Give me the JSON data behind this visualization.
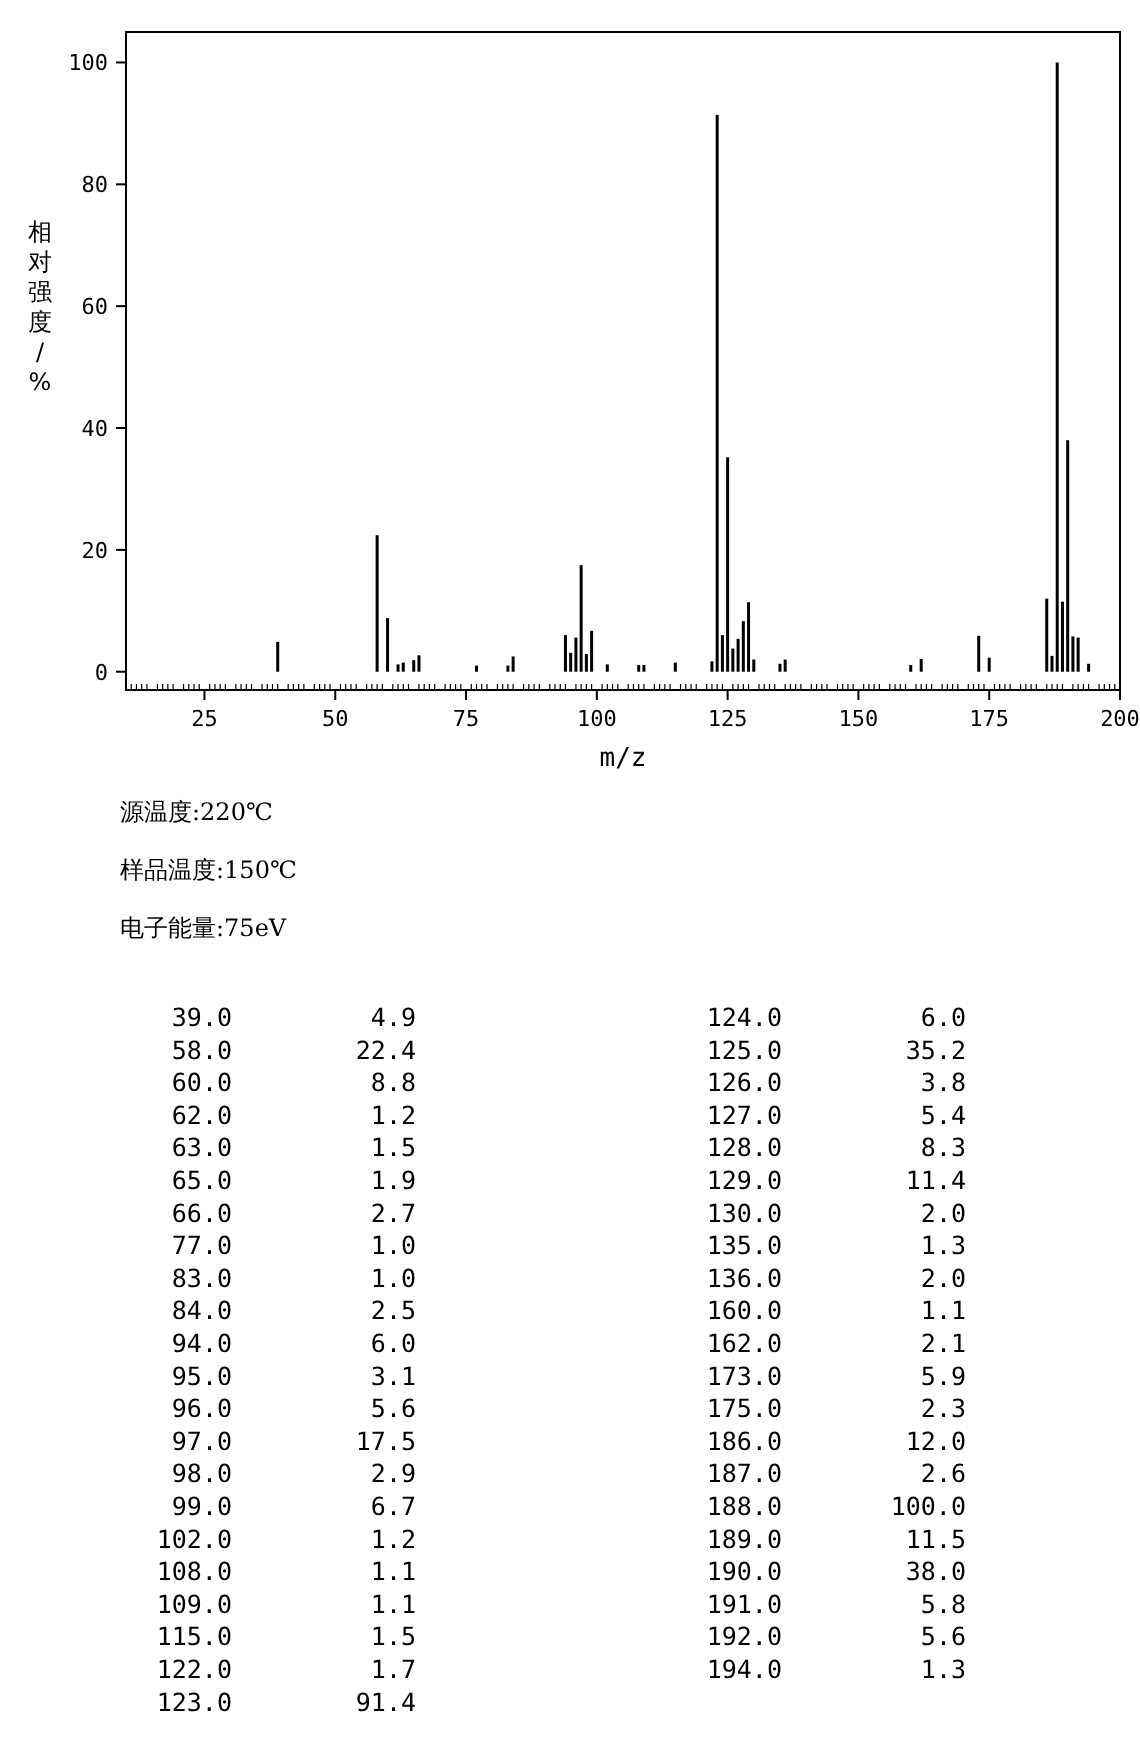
{
  "chart_data": {
    "type": "bar",
    "xlabel": "m/z",
    "ylabel": "相对强度/%",
    "x": [
      39,
      58,
      60,
      62,
      63,
      65,
      66,
      77,
      83,
      84,
      94,
      95,
      96,
      97,
      98,
      99,
      102,
      108,
      109,
      115,
      122,
      123,
      124,
      125,
      126,
      127,
      128,
      129,
      130,
      135,
      136,
      160,
      162,
      173,
      175,
      186,
      187,
      188,
      189,
      190,
      191,
      192,
      194
    ],
    "values": [
      4.9,
      22.4,
      8.8,
      1.2,
      1.5,
      1.9,
      2.7,
      1.0,
      1.0,
      2.5,
      6.0,
      3.1,
      5.6,
      17.5,
      2.9,
      6.7,
      1.2,
      1.1,
      1.1,
      1.5,
      1.7,
      91.4,
      6.0,
      35.2,
      3.8,
      5.4,
      8.3,
      11.4,
      2.0,
      1.3,
      2.0,
      1.1,
      2.1,
      5.9,
      2.3,
      12.0,
      2.6,
      100.0,
      11.5,
      38.0,
      5.8,
      5.6,
      1.3
    ],
    "color": "#000000",
    "xlim": [
      10,
      200
    ],
    "ylim": [
      -3,
      105
    ],
    "xticks": [
      25,
      50,
      75,
      100,
      125,
      150,
      175,
      200
    ],
    "yticks": [
      0,
      20,
      40,
      60,
      80,
      100
    ],
    "annotations": [
      "源温度:220℃",
      "样品温度:150℃",
      "电子能量:75eV",
      "39.0",
      "4.9",
      "58.0",
      "22.4",
      "60.0",
      "8.8",
      "62.0",
      "1.2",
      "63.0",
      "1.5",
      "65.0",
      "1.9",
      "66.0",
      "2.7",
      "77.0",
      "1.0",
      "83.0",
      "1.0",
      "84.0",
      "2.5",
      "94.0",
      "6.0",
      "95.0",
      "3.1",
      "96.0",
      "5.6",
      "97.0",
      "17.5",
      "98.0",
      "2.9",
      "99.0",
      "6.7",
      "102.0",
      "1.2",
      "108.0",
      "1.1",
      "109.0",
      "1.1",
      "115.0",
      "1.5",
      "122.0",
      "1.7",
      "123.0",
      "91.4",
      "124.0",
      "6.0",
      "125.0",
      "35.2",
      "126.0",
      "3.8",
      "127.0",
      "5.4",
      "128.0",
      "8.3",
      "129.0",
      "11.4",
      "130.0",
      "2.0",
      "135.0",
      "1.3",
      "136.0",
      "2.0",
      "160.0",
      "1.1",
      "162.0",
      "2.1",
      "173.0",
      "5.9",
      "175.0",
      "2.3",
      "186.0",
      "12.0",
      "187.0",
      "2.6",
      "188.0",
      "100.0",
      "189.0",
      "11.5",
      "190.0",
      "38.0",
      "191.0",
      "5.8",
      "192.0",
      "5.6",
      "194.0",
      "1.3"
    ]
  }
}
